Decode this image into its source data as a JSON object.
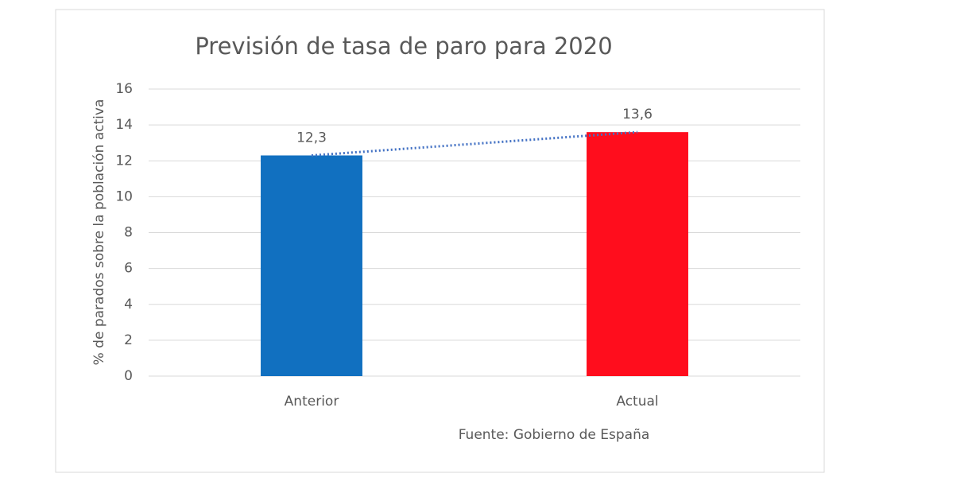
{
  "chart_data": {
    "type": "bar",
    "title": "Previsión de tasa de paro para 2020",
    "y_label": "% de parados sobre la población activa",
    "annotation": "Fuente: Gobierno de España",
    "categories": [
      "Anterior",
      "Actual"
    ],
    "values": [
      12.3,
      13.6
    ],
    "value_labels": [
      "12,3",
      "13,6"
    ],
    "colors": [
      "#1170c0",
      "#ff0d1d"
    ],
    "trendline": true,
    "trendline_color": "#4472c4",
    "ylim": [
      0,
      16
    ],
    "yticks": [
      0,
      2,
      4,
      6,
      8,
      10,
      12,
      14,
      16
    ],
    "grid": true
  }
}
